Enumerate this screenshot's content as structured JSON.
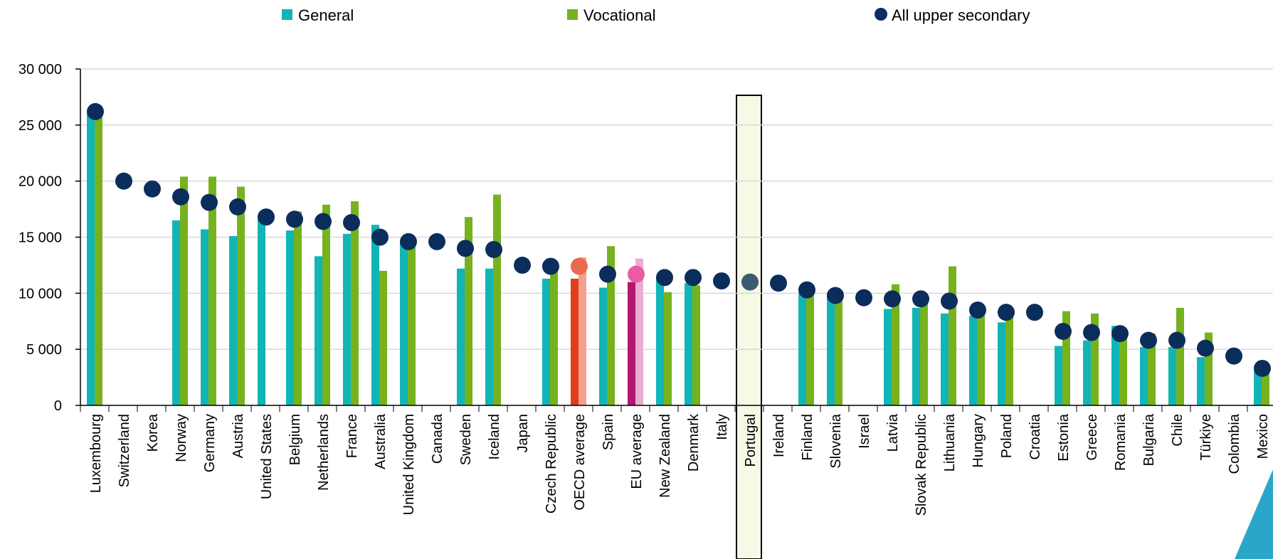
{
  "chart_data": {
    "type": "bar",
    "legend": {
      "general": "General",
      "vocational": "Vocational",
      "all": "All upper secondary",
      "placement": "top"
    },
    "yticks": [
      "0",
      "5 000",
      "10 000",
      "15 000",
      "20 000",
      "25 000",
      "30 000"
    ],
    "ylim": [
      0,
      30000
    ],
    "grid": true,
    "highlight": "Portugal",
    "colors": {
      "general": "#12b5b5",
      "vocational": "#76b21e",
      "all": "#0b2d5b",
      "oecd_general": "#e23d1a",
      "oecd_vocational": "#f5a08a",
      "oecd_all": "#ea6a4f",
      "eu_general": "#b0176f",
      "eu_vocational": "#eaaed0",
      "eu_all": "#ea5ba4",
      "portugal_all": "#3c5a72",
      "highlight_fill": "#f5fae6"
    },
    "categories": [
      "Luxembourg",
      "Switzerland",
      "Korea",
      "Norway",
      "Germany",
      "Austria",
      "United States",
      "Belgium",
      "Netherlands",
      "France",
      "Australia",
      "United Kingdom",
      "Canada",
      "Sweden",
      "Iceland",
      "Japan",
      "Czech Republic",
      "OECD average",
      "Spain",
      "EU average",
      "New Zealand",
      "Denmark",
      "Italy",
      "Portugal",
      "Ireland",
      "Finland",
      "Slovenia",
      "Israel",
      "Latvia",
      "Slovak Republic",
      "Lithuania",
      "Hungary",
      "Poland",
      "Croatia",
      "Estonia",
      "Greece",
      "Romania",
      "Bulgaria",
      "Chile",
      "Türkiye",
      "Colombia",
      "Mexico"
    ],
    "series": [
      {
        "name": "General",
        "values": [
          26000,
          null,
          null,
          16500,
          15700,
          15100,
          16700,
          15600,
          13300,
          15300,
          16100,
          14600,
          null,
          12200,
          12200,
          null,
          11300,
          11300,
          10500,
          11000,
          11300,
          10900,
          null,
          null,
          null,
          10000,
          10000,
          null,
          8600,
          8700,
          8200,
          8000,
          7400,
          null,
          5300,
          5800,
          7100,
          5200,
          5200,
          4300,
          null,
          3100
        ]
      },
      {
        "name": "Vocational",
        "values": [
          26000,
          null,
          null,
          20400,
          20400,
          19500,
          null,
          17300,
          17900,
          18200,
          12000,
          14600,
          null,
          16800,
          18800,
          null,
          12100,
          13200,
          14200,
          13100,
          10100,
          10700,
          null,
          null,
          null,
          10200,
          9600,
          null,
          10800,
          9500,
          12400,
          8800,
          8300,
          null,
          8400,
          8200,
          6300,
          6400,
          8700,
          6500,
          null,
          3500
        ]
      },
      {
        "name": "All upper secondary",
        "values": [
          26200,
          20000,
          19300,
          18600,
          18100,
          17700,
          16800,
          16600,
          16400,
          16300,
          15000,
          14600,
          14600,
          14000,
          13900,
          12500,
          12400,
          12400,
          11700,
          11700,
          11400,
          11400,
          11100,
          11000,
          10900,
          10300,
          9800,
          9600,
          9500,
          9500,
          9300,
          8500,
          8300,
          8300,
          6600,
          6500,
          6400,
          5800,
          5800,
          5100,
          4400,
          3300
        ]
      }
    ]
  }
}
